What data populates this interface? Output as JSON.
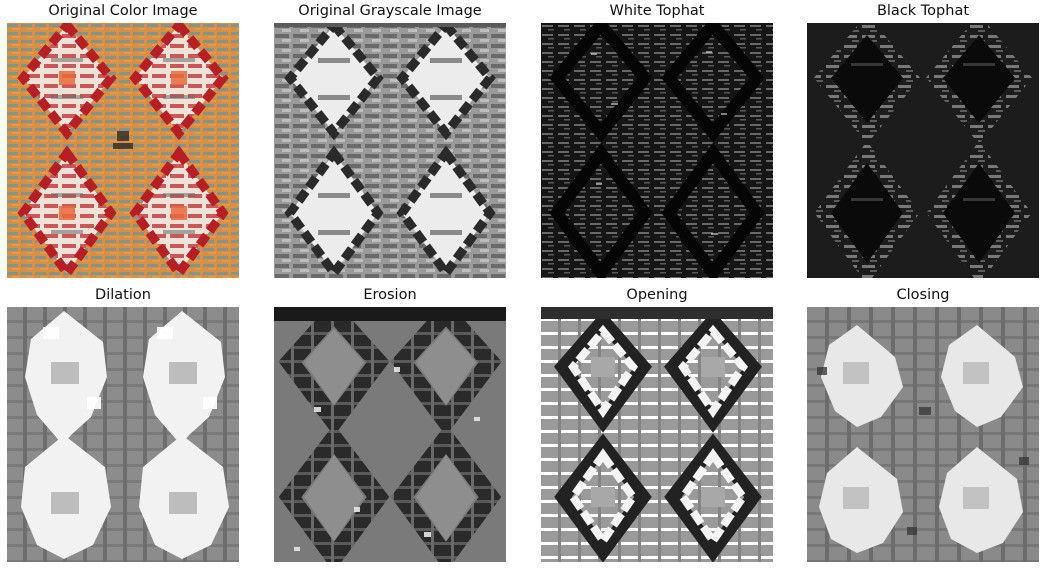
{
  "figure": {
    "panels": [
      {
        "title": "Original Color Image",
        "image": "kilim-color-photo"
      },
      {
        "title": "Original Grayscale Image",
        "image": "kilim-grayscale"
      },
      {
        "title": "White Tophat",
        "image": "white-tophat-result"
      },
      {
        "title": "Black Tophat",
        "image": "black-tophat-result"
      },
      {
        "title": "Dilation",
        "image": "dilation-result"
      },
      {
        "title": "Erosion",
        "image": "erosion-result"
      },
      {
        "title": "Opening",
        "image": "opening-result"
      },
      {
        "title": "Closing",
        "image": "closing-result"
      }
    ]
  }
}
